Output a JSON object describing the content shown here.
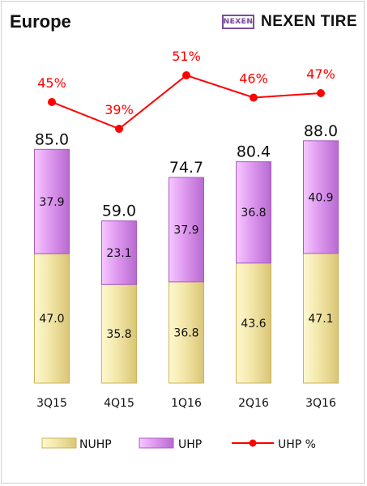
{
  "title": "Europe",
  "brand": {
    "logo_text": "NEXEN",
    "name": "NEXEN TIRE",
    "logo_color": "#7b4ca0"
  },
  "colors": {
    "nuhp": "#f2e6a8",
    "nuhp_edge": "#c9b65a",
    "uhp": "#de98ef",
    "uhp_edge": "#a85dc0",
    "uhp_pct_line": "#ff0000"
  },
  "chart_data": {
    "type": "bar",
    "stacked": true,
    "categories": [
      "3Q15",
      "4Q15",
      "1Q16",
      "2Q16",
      "3Q16"
    ],
    "series": [
      {
        "name": "NUHP",
        "values": [
          47.0,
          35.8,
          36.8,
          43.6,
          47.1
        ]
      },
      {
        "name": "UHP",
        "values": [
          37.9,
          23.1,
          37.9,
          36.8,
          40.9
        ]
      }
    ],
    "totals": [
      85.0,
      59.0,
      74.7,
      80.4,
      88.0
    ],
    "line_series": {
      "name": "UHP %",
      "values": [
        45,
        39,
        51,
        46,
        47
      ],
      "labels": [
        "45%",
        "39%",
        "51%",
        "46%",
        "47%"
      ]
    },
    "legend": [
      "NUHP",
      "UHP",
      "UHP %"
    ],
    "legend_position": "bottom",
    "grid": false
  }
}
